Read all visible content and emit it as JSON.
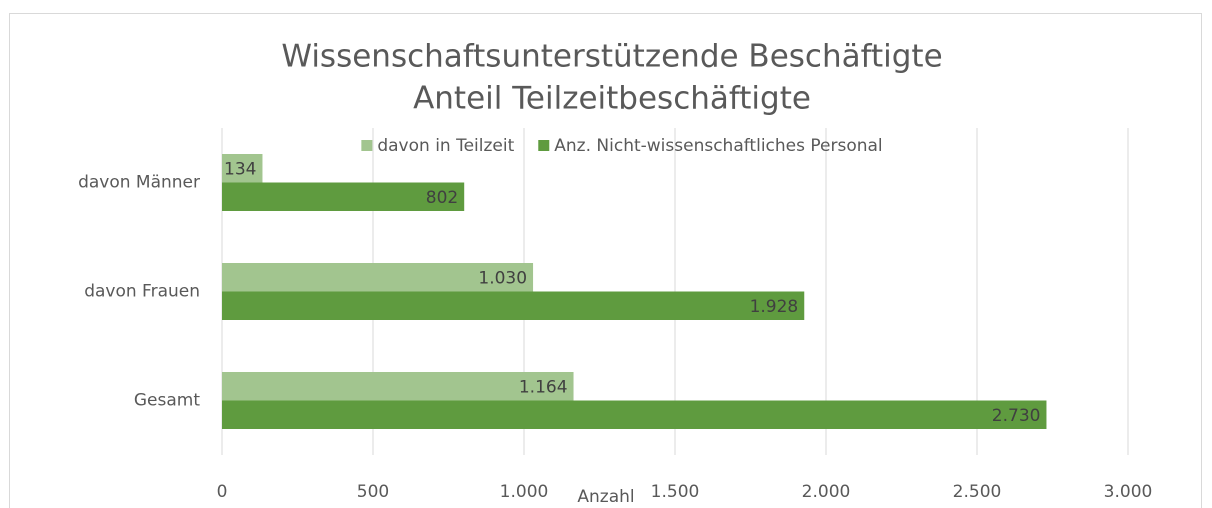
{
  "chart_data": {
    "type": "bar",
    "orientation": "horizontal",
    "title": [
      "Wissenschaftsunterstützende Beschäftigte",
      "Anteil Teilzeitbeschäftigte"
    ],
    "x_label": "Anzahl",
    "categories": [
      "davon Männer",
      "davon Frauen",
      "Gesamt"
    ],
    "series": [
      {
        "name": "davon in Teilzeit",
        "color": "#a2c58f",
        "values": [
          134,
          1030,
          1164
        ],
        "value_labels": [
          "134",
          "1.030",
          "1.164"
        ]
      },
      {
        "name": "Anz. Nicht-wissenschaftliches Personal",
        "color": "#5f9b3f",
        "values": [
          802,
          1928,
          2730
        ],
        "value_labels": [
          "802",
          "1.928",
          "2.730"
        ]
      }
    ],
    "xlim": [
      0,
      3000
    ],
    "xticks": [
      0,
      500,
      {
        "value": 1000,
        "label": "1.000"
      },
      {
        "value": 1500,
        "label": "1.500"
      },
      {
        "value": 2000,
        "label": "2.000"
      },
      {
        "value": 2500,
        "label": "2.500"
      },
      {
        "value": 3000,
        "label": "3.000"
      }
    ],
    "grid": true,
    "legend": "top"
  }
}
